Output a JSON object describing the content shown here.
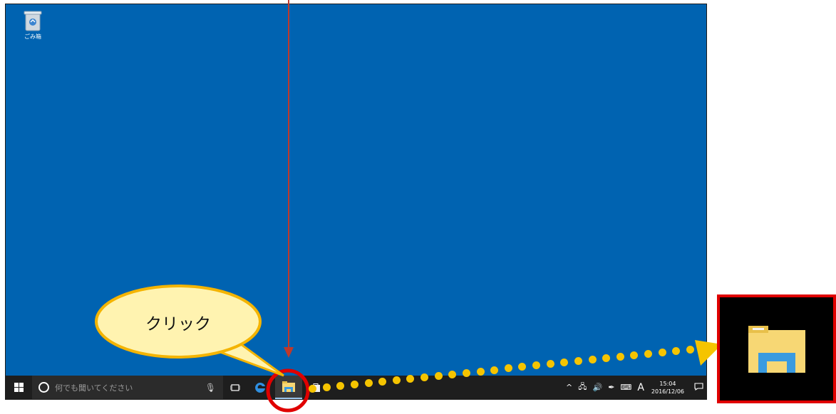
{
  "desktop": {
    "recycle_bin_label": "ごみ箱",
    "background_color": "#0063b1"
  },
  "taskbar": {
    "search_placeholder": "何でも聞いてください",
    "pinned_icons": [
      "task-view-icon",
      "edge-icon",
      "file-explorer-icon",
      "store-icon"
    ],
    "tray": {
      "caret": "^",
      "ime_mode": "A",
      "time": "15:04",
      "date": "2016/12/06"
    }
  },
  "annotation": {
    "callout_text": "クリック",
    "highlight_color": "#e00000",
    "dot_color": "#f5c400",
    "arrow_color": "#c0392b"
  }
}
